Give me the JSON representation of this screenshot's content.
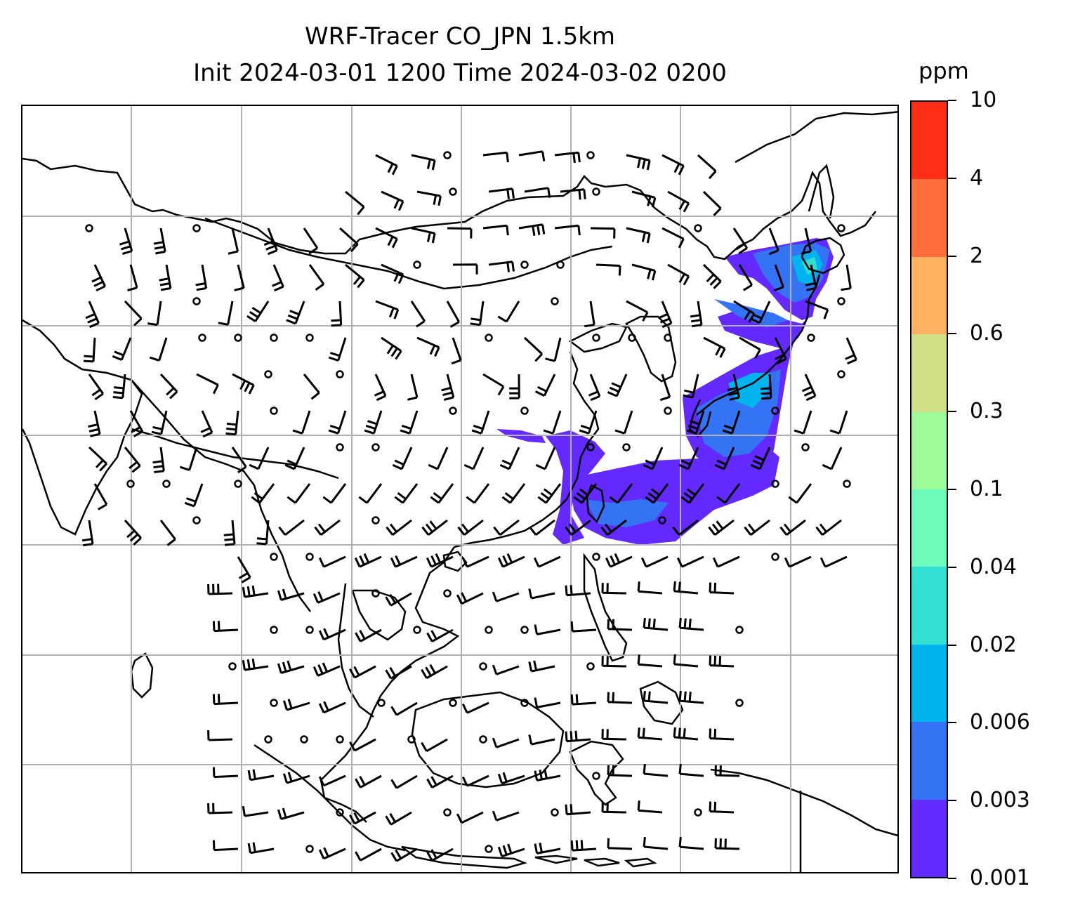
{
  "title": {
    "line1": "WRF-Tracer CO_JPN 1.5km",
    "line2": "Init 2024-03-01 1200 Time 2024-03-02 0200"
  },
  "colorbar": {
    "unit": "ppm",
    "levels": [
      "0.001",
      "0.003",
      "0.006",
      "0.02",
      "0.04",
      "0.1",
      "0.3",
      "0.6",
      "2",
      "4",
      "10"
    ],
    "colors": [
      "#6329ff",
      "#3474f4",
      "#02b4ee",
      "#32e0d1",
      "#6dfcbb",
      "#9dfb99",
      "#d1e086",
      "#feb161",
      "#fe6f3c",
      "#ff2e17"
    ]
  },
  "map": {
    "gridlines": true,
    "gridline_color": "#b0b0b0",
    "coastline_color": "#000000",
    "plume_colors": {
      "low": "#6329ff",
      "mid": "#3474f4",
      "high": "#02b4ee",
      "peak": "#32e0d1"
    }
  }
}
